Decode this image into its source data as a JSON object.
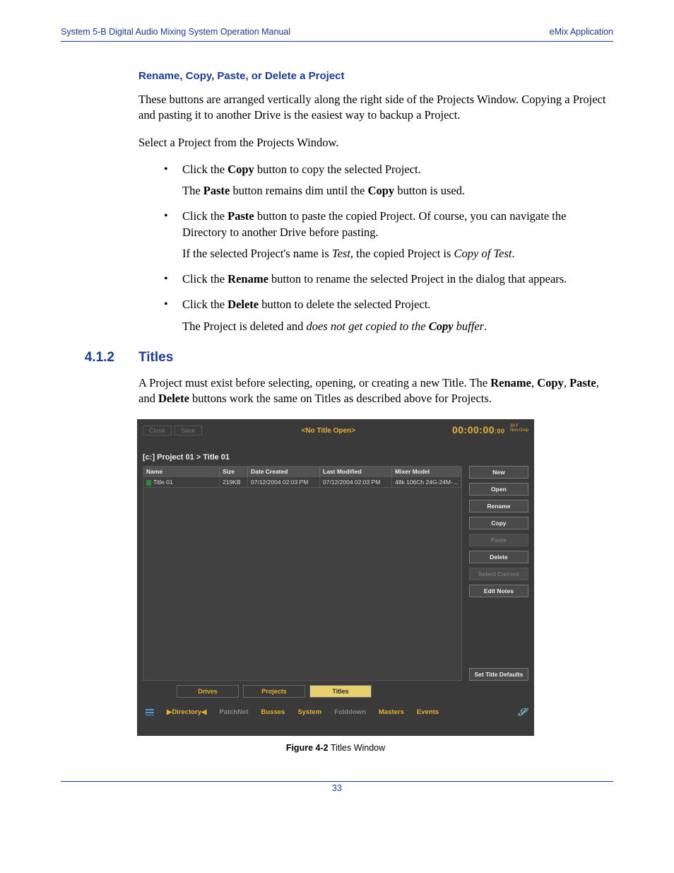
{
  "header": {
    "left": "System 5-B Digital Audio Mixing System Operation Manual",
    "right": "eMix Application"
  },
  "subhead1": "Rename, Copy, Paste, or Delete a Project",
  "para1": "These buttons are arranged vertically along the right side of the Projects Window. Copying a Project and pasting it to another Drive is the easiest way to backup a Project.",
  "para2": "Select a Project from the Projects Window.",
  "bullets": {
    "b1a": "Click the ",
    "b1b": "Copy",
    "b1c": " button to copy the selected Project.",
    "b1_p2a": "The ",
    "b1_p2b": "Paste",
    "b1_p2c": " button remains dim until the ",
    "b1_p2d": "Copy",
    "b1_p2e": " button is used.",
    "b2a": "Click the ",
    "b2b": "Paste",
    "b2c": " button to paste the copied Project. Of course, you can navigate the Directory to another Drive before pasting.",
    "b2_p2a": "If the selected Project's name is ",
    "b2_p2b": "Test",
    "b2_p2c": ", the copied Project is ",
    "b2_p2d": "Copy of Test",
    "b2_p2e": ".",
    "b3a": "Click the ",
    "b3b": "Rename",
    "b3c": " button to rename the selected Project in the dialog that appears.",
    "b4a": "Click the ",
    "b4b": "Delete",
    "b4c": " button to delete the selected Project.",
    "b4_p2a": "The Project is deleted and ",
    "b4_p2b": "does not get copied to the ",
    "b4_p2c": "Copy",
    "b4_p2d": " buffer",
    "b4_p2e": "."
  },
  "section": {
    "num": "4.1.2",
    "title": "Titles"
  },
  "para3a": "A Project must exist before selecting, opening, or creating a new Title. The ",
  "para3b": "Rename",
  "para3c": ", ",
  "para3d": "Copy",
  "para3e": ", ",
  "para3f": "Paste",
  "para3g": ", and ",
  "para3h": "Delete",
  "para3i": " buttons work the same on Titles as described above for Projects.",
  "screenshot": {
    "close": "Close",
    "save": "Save",
    "title_open": "<No Title Open>",
    "time_main": "00:00:00",
    "time_small": ":00",
    "time_meta1": "30 F",
    "time_meta2": "Non-Drop",
    "breadcrumb": "[c:] Project 01 > Title 01",
    "columns": {
      "name": "Name",
      "size": "Size",
      "created": "Date Created",
      "modified": "Last Modified",
      "model": "Mixer Model"
    },
    "row": {
      "name": "Title 01",
      "size": "219KB",
      "created": "07/12/2004 02:03 PM",
      "modified": "07/12/2004 02:03 PM",
      "model": "48k 106Ch 24G-24M-..."
    },
    "sidebar": {
      "new": "New",
      "open": "Open",
      "rename": "Rename",
      "copy": "Copy",
      "paste": "Paste",
      "delete": "Delete",
      "select_current": "Select Current",
      "edit_notes": "Edit Notes",
      "set_defaults": "Set Title Defaults"
    },
    "tabs": {
      "drives": "Drives",
      "projects": "Projects",
      "titles": "Titles"
    },
    "bottom": {
      "directory": "Directory",
      "patchnet": "PatchNet",
      "busses": "Busses",
      "system": "System",
      "folddown": "Folddown",
      "masters": "Masters",
      "events": "Events"
    }
  },
  "figure": {
    "label": "Figure 4-2",
    "caption": " Titles Window"
  },
  "page_num": "33"
}
